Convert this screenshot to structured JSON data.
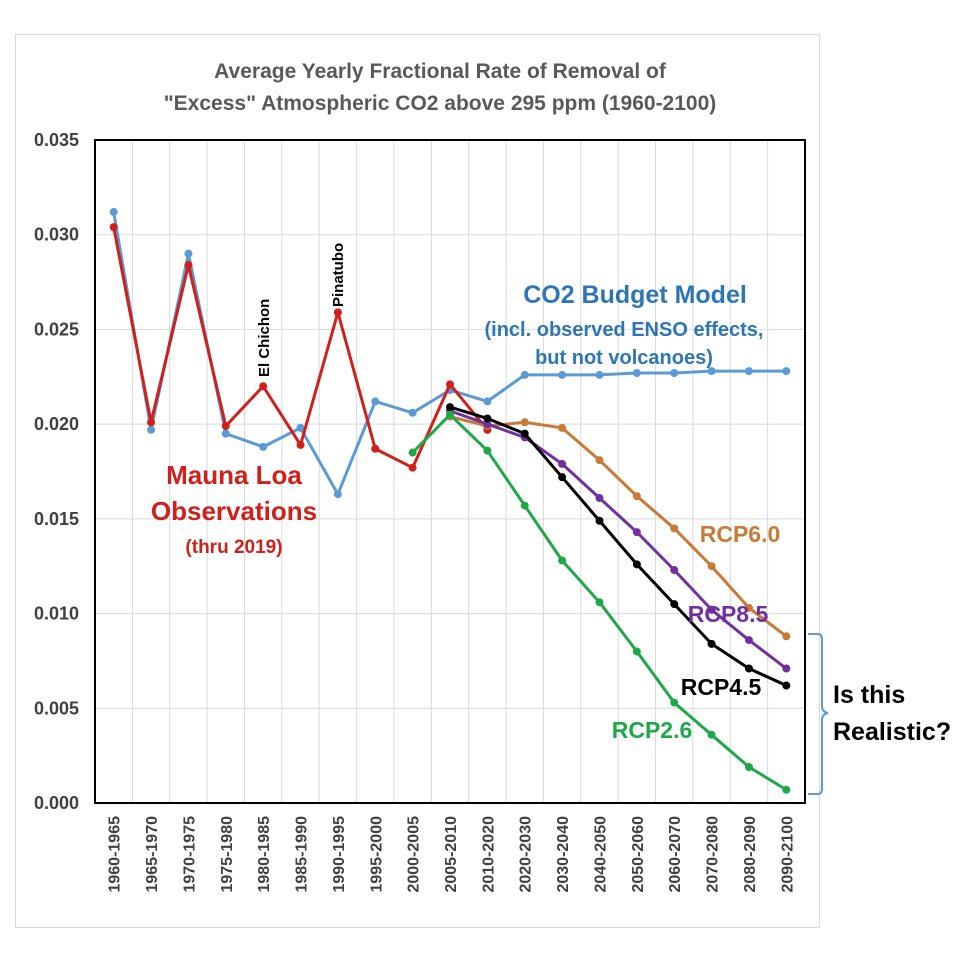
{
  "chart_data": {
    "type": "line",
    "title": [
      "Average Yearly Fractional Rate of Removal of",
      "\"Excess\" Atmospheric CO2 above 295 ppm (1960-2100)"
    ],
    "xlabel": "",
    "ylabel": "",
    "ylim": [
      0,
      0.035
    ],
    "grid": true,
    "y_ticks": [
      "0.000",
      "0.005",
      "0.010",
      "0.015",
      "0.020",
      "0.025",
      "0.030",
      "0.035"
    ],
    "categories": [
      "1960-1965",
      "1965-1970",
      "1970-1975",
      "1975-1980",
      "1980-1985",
      "1985-1990",
      "1990-1995",
      "1995-2000",
      "2000-2005",
      "2005-2010",
      "2010-2020",
      "2020-2030",
      "2030-2040",
      "2040-2050",
      "2050-2060",
      "2060-2070",
      "2070-2080",
      "2080-2090",
      "2090-2100"
    ],
    "series": [
      {
        "name": "CO2 Budget Model",
        "color": "#5b9bd5",
        "values": [
          0.0312,
          0.0197,
          0.029,
          0.0195,
          0.0188,
          0.0198,
          0.0163,
          0.0212,
          0.0206,
          0.0218,
          0.0212,
          0.0226,
          0.0226,
          0.0226,
          0.0227,
          0.0227,
          0.0228,
          0.0228,
          0.0228
        ]
      },
      {
        "name": "Mauna Loa Observations",
        "color": "#d0201c",
        "values": [
          0.0304,
          0.0201,
          0.0284,
          0.0199,
          0.022,
          0.0189,
          0.0259,
          0.0187,
          0.0177,
          0.0221,
          0.0197,
          null,
          null,
          null,
          null,
          null,
          null,
          null,
          null
        ]
      },
      {
        "name": "RCP6.0",
        "color": "#c97a38",
        "values": [
          null,
          null,
          null,
          null,
          null,
          null,
          null,
          null,
          null,
          0.0204,
          0.0199,
          0.0201,
          0.0198,
          0.0181,
          0.0162,
          0.0145,
          0.0125,
          0.0103,
          0.0088
        ]
      },
      {
        "name": "RCP8.5",
        "color": "#7030a0",
        "values": [
          null,
          null,
          null,
          null,
          null,
          null,
          null,
          null,
          null,
          0.0207,
          0.02,
          0.0193,
          0.0179,
          0.0161,
          0.0143,
          0.0123,
          0.0102,
          0.0086,
          0.0071
        ]
      },
      {
        "name": "RCP4.5",
        "color": "#000000",
        "values": [
          null,
          null,
          null,
          null,
          null,
          null,
          null,
          null,
          null,
          0.0209,
          0.0203,
          0.0195,
          0.0172,
          0.0149,
          0.0126,
          0.0105,
          0.0084,
          0.0071,
          0.0062
        ]
      },
      {
        "name": "RCP2.6",
        "color": "#1fa84a",
        "values": [
          null,
          null,
          null,
          null,
          null,
          null,
          null,
          null,
          0.0185,
          0.0205,
          0.0186,
          0.0157,
          0.0128,
          0.0106,
          0.008,
          0.0053,
          0.0036,
          0.0019,
          0.0007
        ]
      }
    ],
    "annotations": {
      "el_chichon": "El Chichon",
      "pinatubo": "Pinatubo",
      "model_title": "CO2 Budget Model",
      "model_sub1": "(incl. observed ENSO effects,",
      "model_sub2": "but not volcanoes)",
      "mauna1": "Mauna Loa",
      "mauna2": "Observations",
      "mauna3": "(thru 2019)",
      "rcp60": "RCP6.0",
      "rcp85": "RCP8.5",
      "rcp45": "RCP4.5",
      "rcp26": "RCP2.6",
      "question1": "Is this",
      "question2": "Realistic?"
    }
  }
}
